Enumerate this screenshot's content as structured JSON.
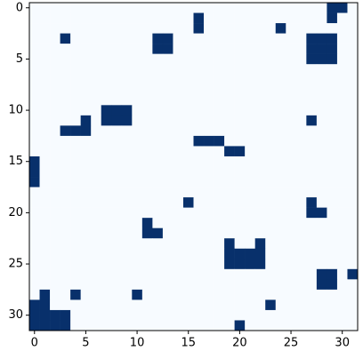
{
  "chart_data": {
    "type": "heatmap",
    "colors": [
      "#f7fbff",
      "#08306b"
    ],
    "xlim": [
      -0.5,
      31.5
    ],
    "ylim": [
      31.5,
      -0.5
    ],
    "xticks": [
      0,
      5,
      10,
      15,
      20,
      25,
      30
    ],
    "yticks": [
      0,
      5,
      10,
      15,
      20,
      25,
      30
    ],
    "values": [
      [
        0,
        0,
        0,
        0,
        0,
        0,
        0,
        0,
        0,
        0,
        0,
        0,
        0,
        0,
        0,
        0,
        0,
        0,
        0,
        0,
        0,
        0,
        0,
        0,
        0,
        0,
        0,
        0,
        0,
        1,
        1,
        0
      ],
      [
        0,
        0,
        0,
        0,
        0,
        0,
        0,
        0,
        0,
        0,
        0,
        0,
        0,
        0,
        0,
        0,
        1,
        0,
        0,
        0,
        0,
        0,
        0,
        0,
        0,
        0,
        0,
        0,
        0,
        1,
        0,
        0
      ],
      [
        0,
        0,
        0,
        0,
        0,
        0,
        0,
        0,
        0,
        0,
        0,
        0,
        0,
        0,
        0,
        0,
        1,
        0,
        0,
        0,
        0,
        0,
        0,
        0,
        1,
        0,
        0,
        0,
        0,
        0,
        0,
        0
      ],
      [
        0,
        0,
        0,
        1,
        0,
        0,
        0,
        0,
        0,
        0,
        0,
        0,
        1,
        1,
        0,
        0,
        0,
        0,
        0,
        0,
        0,
        0,
        0,
        0,
        0,
        0,
        0,
        1,
        1,
        1,
        0,
        0
      ],
      [
        0,
        0,
        0,
        0,
        0,
        0,
        0,
        0,
        0,
        0,
        0,
        0,
        1,
        1,
        0,
        0,
        0,
        0,
        0,
        0,
        0,
        0,
        0,
        0,
        0,
        0,
        0,
        1,
        1,
        1,
        0,
        0
      ],
      [
        0,
        0,
        0,
        0,
        0,
        0,
        0,
        0,
        0,
        0,
        0,
        0,
        0,
        0,
        0,
        0,
        0,
        0,
        0,
        0,
        0,
        0,
        0,
        0,
        0,
        0,
        0,
        1,
        1,
        1,
        0,
        0
      ],
      [
        0,
        0,
        0,
        0,
        0,
        0,
        0,
        0,
        0,
        0,
        0,
        0,
        0,
        0,
        0,
        0,
        0,
        0,
        0,
        0,
        0,
        0,
        0,
        0,
        0,
        0,
        0,
        0,
        0,
        0,
        0,
        0
      ],
      [
        0,
        0,
        0,
        0,
        0,
        0,
        0,
        0,
        0,
        0,
        0,
        0,
        0,
        0,
        0,
        0,
        0,
        0,
        0,
        0,
        0,
        0,
        0,
        0,
        0,
        0,
        0,
        0,
        0,
        0,
        0,
        0
      ],
      [
        0,
        0,
        0,
        0,
        0,
        0,
        0,
        0,
        0,
        0,
        0,
        0,
        0,
        0,
        0,
        0,
        0,
        0,
        0,
        0,
        0,
        0,
        0,
        0,
        0,
        0,
        0,
        0,
        0,
        0,
        0,
        0
      ],
      [
        0,
        0,
        0,
        0,
        0,
        0,
        0,
        0,
        0,
        0,
        0,
        0,
        0,
        0,
        0,
        0,
        0,
        0,
        0,
        0,
        0,
        0,
        0,
        0,
        0,
        0,
        0,
        0,
        0,
        0,
        0,
        0
      ],
      [
        0,
        0,
        0,
        0,
        0,
        0,
        0,
        1,
        1,
        1,
        0,
        0,
        0,
        0,
        0,
        0,
        0,
        0,
        0,
        0,
        0,
        0,
        0,
        0,
        0,
        0,
        0,
        0,
        0,
        0,
        0,
        0
      ],
      [
        0,
        0,
        0,
        0,
        0,
        1,
        0,
        1,
        1,
        1,
        0,
        0,
        0,
        0,
        0,
        0,
        0,
        0,
        0,
        0,
        0,
        0,
        0,
        0,
        0,
        0,
        0,
        1,
        0,
        0,
        0,
        0
      ],
      [
        0,
        0,
        0,
        1,
        1,
        1,
        0,
        0,
        0,
        0,
        0,
        0,
        0,
        0,
        0,
        0,
        0,
        0,
        0,
        0,
        0,
        0,
        0,
        0,
        0,
        0,
        0,
        0,
        0,
        0,
        0,
        0
      ],
      [
        0,
        0,
        0,
        0,
        0,
        0,
        0,
        0,
        0,
        0,
        0,
        0,
        0,
        0,
        0,
        0,
        1,
        1,
        1,
        0,
        0,
        0,
        0,
        0,
        0,
        0,
        0,
        0,
        0,
        0,
        0,
        0
      ],
      [
        0,
        0,
        0,
        0,
        0,
        0,
        0,
        0,
        0,
        0,
        0,
        0,
        0,
        0,
        0,
        0,
        0,
        0,
        0,
        1,
        1,
        0,
        0,
        0,
        0,
        0,
        0,
        0,
        0,
        0,
        0,
        0
      ],
      [
        1,
        0,
        0,
        0,
        0,
        0,
        0,
        0,
        0,
        0,
        0,
        0,
        0,
        0,
        0,
        0,
        0,
        0,
        0,
        0,
        0,
        0,
        0,
        0,
        0,
        0,
        0,
        0,
        0,
        0,
        0,
        0
      ],
      [
        1,
        0,
        0,
        0,
        0,
        0,
        0,
        0,
        0,
        0,
        0,
        0,
        0,
        0,
        0,
        0,
        0,
        0,
        0,
        0,
        0,
        0,
        0,
        0,
        0,
        0,
        0,
        0,
        0,
        0,
        0,
        0
      ],
      [
        1,
        0,
        0,
        0,
        0,
        0,
        0,
        0,
        0,
        0,
        0,
        0,
        0,
        0,
        0,
        0,
        0,
        0,
        0,
        0,
        0,
        0,
        0,
        0,
        0,
        0,
        0,
        0,
        0,
        0,
        0,
        0
      ],
      [
        0,
        0,
        0,
        0,
        0,
        0,
        0,
        0,
        0,
        0,
        0,
        0,
        0,
        0,
        0,
        0,
        0,
        0,
        0,
        0,
        0,
        0,
        0,
        0,
        0,
        0,
        0,
        0,
        0,
        0,
        0,
        0
      ],
      [
        0,
        0,
        0,
        0,
        0,
        0,
        0,
        0,
        0,
        0,
        0,
        0,
        0,
        0,
        0,
        1,
        0,
        0,
        0,
        0,
        0,
        0,
        0,
        0,
        0,
        0,
        0,
        1,
        0,
        0,
        0,
        0
      ],
      [
        0,
        0,
        0,
        0,
        0,
        0,
        0,
        0,
        0,
        0,
        0,
        0,
        0,
        0,
        0,
        0,
        0,
        0,
        0,
        0,
        0,
        0,
        0,
        0,
        0,
        0,
        0,
        1,
        1,
        0,
        0,
        0
      ],
      [
        0,
        0,
        0,
        0,
        0,
        0,
        0,
        0,
        0,
        0,
        0,
        1,
        0,
        0,
        0,
        0,
        0,
        0,
        0,
        0,
        0,
        0,
        0,
        0,
        0,
        0,
        0,
        0,
        0,
        0,
        0,
        0
      ],
      [
        0,
        0,
        0,
        0,
        0,
        0,
        0,
        0,
        0,
        0,
        0,
        1,
        1,
        0,
        0,
        0,
        0,
        0,
        0,
        0,
        0,
        0,
        0,
        0,
        0,
        0,
        0,
        0,
        0,
        0,
        0,
        0
      ],
      [
        0,
        0,
        0,
        0,
        0,
        0,
        0,
        0,
        0,
        0,
        0,
        0,
        0,
        0,
        0,
        0,
        0,
        0,
        0,
        1,
        0,
        0,
        1,
        0,
        0,
        0,
        0,
        0,
        0,
        0,
        0,
        0
      ],
      [
        0,
        0,
        0,
        0,
        0,
        0,
        0,
        0,
        0,
        0,
        0,
        0,
        0,
        0,
        0,
        0,
        0,
        0,
        0,
        1,
        1,
        1,
        1,
        0,
        0,
        0,
        0,
        0,
        0,
        0,
        0,
        0
      ],
      [
        0,
        0,
        0,
        0,
        0,
        0,
        0,
        0,
        0,
        0,
        0,
        0,
        0,
        0,
        0,
        0,
        0,
        0,
        0,
        1,
        1,
        1,
        1,
        0,
        0,
        0,
        0,
        0,
        0,
        0,
        0,
        0
      ],
      [
        0,
        0,
        0,
        0,
        0,
        0,
        0,
        0,
        0,
        0,
        0,
        0,
        0,
        0,
        0,
        0,
        0,
        0,
        0,
        0,
        0,
        0,
        0,
        0,
        0,
        0,
        0,
        0,
        1,
        1,
        0,
        1
      ],
      [
        0,
        0,
        0,
        0,
        0,
        0,
        0,
        0,
        0,
        0,
        0,
        0,
        0,
        0,
        0,
        0,
        0,
        0,
        0,
        0,
        0,
        0,
        0,
        0,
        0,
        0,
        0,
        0,
        1,
        1,
        0,
        0
      ],
      [
        0,
        1,
        0,
        0,
        1,
        0,
        0,
        0,
        0,
        0,
        1,
        0,
        0,
        0,
        0,
        0,
        0,
        0,
        0,
        0,
        0,
        0,
        0,
        0,
        0,
        0,
        0,
        0,
        0,
        0,
        0,
        0
      ],
      [
        1,
        1,
        0,
        0,
        0,
        0,
        0,
        0,
        0,
        0,
        0,
        0,
        0,
        0,
        0,
        0,
        0,
        0,
        0,
        0,
        0,
        0,
        0,
        1,
        0,
        0,
        0,
        0,
        0,
        0,
        0,
        0
      ],
      [
        1,
        1,
        1,
        1,
        0,
        0,
        0,
        0,
        0,
        0,
        0,
        0,
        0,
        0,
        0,
        0,
        0,
        0,
        0,
        0,
        0,
        0,
        0,
        0,
        0,
        0,
        0,
        0,
        0,
        0,
        0,
        0
      ],
      [
        1,
        1,
        1,
        1,
        0,
        0,
        0,
        0,
        0,
        0,
        0,
        0,
        0,
        0,
        0,
        0,
        0,
        0,
        0,
        0,
        1,
        0,
        0,
        0,
        0,
        0,
        0,
        0,
        0,
        0,
        0,
        0
      ]
    ]
  }
}
